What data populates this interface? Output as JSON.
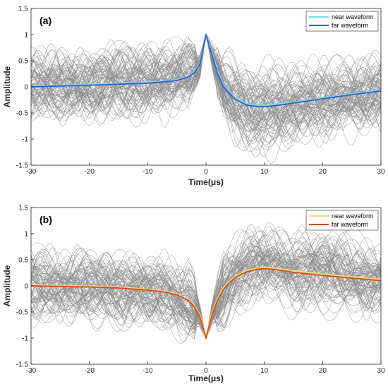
{
  "chart_data": [
    {
      "type": "line",
      "panel_label": "(a)",
      "xlabel": "Time(μs)",
      "ylabel": "Amplitude",
      "xlim": [
        -30,
        30
      ],
      "ylim": [
        -1.5,
        1.5
      ],
      "xticks": [
        -30,
        -20,
        -10,
        0,
        10,
        20,
        30
      ],
      "yticks": [
        -1.5,
        -1,
        -0.5,
        0,
        0.5,
        1,
        1.5
      ],
      "ytick_labels": [
        "-1.5",
        "-1",
        "-0.5",
        "0",
        "0.5",
        "1",
        "1.5"
      ],
      "legend_position": "top-right",
      "background_traces": {
        "color": "#8c8c8c",
        "polarity": 1
      },
      "series": [
        {
          "name": "near waveform",
          "color": "#7fd8e8",
          "x": [
            -30,
            -20,
            -10,
            -5,
            -3,
            -2,
            -1,
            0,
            1,
            2,
            3,
            5,
            7,
            9,
            10,
            12,
            15,
            20,
            25,
            30
          ],
          "y": [
            0.01,
            0.04,
            0.08,
            0.13,
            0.2,
            0.28,
            0.45,
            1.0,
            0.65,
            0.28,
            0.02,
            -0.22,
            -0.33,
            -0.36,
            -0.36,
            -0.34,
            -0.3,
            -0.22,
            -0.14,
            -0.07
          ]
        },
        {
          "name": "far waveform",
          "color": "#2f5fd0",
          "x": [
            -30,
            -20,
            -10,
            -5,
            -3,
            -2,
            -1,
            0,
            1,
            2,
            3,
            5,
            7,
            9,
            10,
            12,
            15,
            20,
            25,
            30
          ],
          "y": [
            0.0,
            0.03,
            0.07,
            0.12,
            0.19,
            0.27,
            0.44,
            1.0,
            0.62,
            0.25,
            0.0,
            -0.24,
            -0.35,
            -0.38,
            -0.38,
            -0.36,
            -0.31,
            -0.23,
            -0.15,
            -0.08
          ]
        }
      ]
    },
    {
      "type": "line",
      "panel_label": "(b)",
      "xlabel": "Time(μs)",
      "ylabel": "Amplitude",
      "xlim": [
        -30,
        30
      ],
      "ylim": [
        -1.5,
        1.5
      ],
      "xticks": [
        -30,
        -20,
        -10,
        0,
        10,
        20,
        30
      ],
      "yticks": [
        -1.5,
        -1,
        -0.5,
        0,
        0.5,
        1,
        1.5
      ],
      "ytick_labels": [
        "-1.5",
        "-1",
        "-0.5",
        "0",
        "0.5",
        "1",
        "1.5"
      ],
      "legend_position": "top-right",
      "background_traces": {
        "color": "#8c8c8c",
        "polarity": -1
      },
      "series": [
        {
          "name": "near waveform",
          "color": "#f6d77a",
          "x": [
            -30,
            -20,
            -15,
            -10,
            -7,
            -5,
            -3,
            -2,
            -1,
            0,
            1,
            2,
            3,
            4,
            5,
            7,
            9,
            10,
            12,
            15,
            20,
            25,
            30
          ],
          "y": [
            0.01,
            -0.01,
            -0.03,
            -0.07,
            -0.11,
            -0.16,
            -0.27,
            -0.38,
            -0.58,
            -1.0,
            -0.55,
            -0.25,
            -0.05,
            0.08,
            0.18,
            0.29,
            0.34,
            0.35,
            0.33,
            0.28,
            0.22,
            0.17,
            0.12
          ]
        },
        {
          "name": "far waveform",
          "color": "#d9481c",
          "x": [
            -30,
            -20,
            -15,
            -10,
            -7,
            -5,
            -3,
            -2,
            -1,
            0,
            1,
            2,
            3,
            4,
            5,
            7,
            9,
            10,
            12,
            15,
            20,
            25,
            30
          ],
          "y": [
            0.0,
            -0.02,
            -0.04,
            -0.08,
            -0.12,
            -0.17,
            -0.28,
            -0.4,
            -0.6,
            -1.0,
            -0.57,
            -0.27,
            -0.07,
            0.06,
            0.16,
            0.27,
            0.32,
            0.33,
            0.31,
            0.26,
            0.2,
            0.15,
            0.1
          ]
        }
      ]
    }
  ]
}
